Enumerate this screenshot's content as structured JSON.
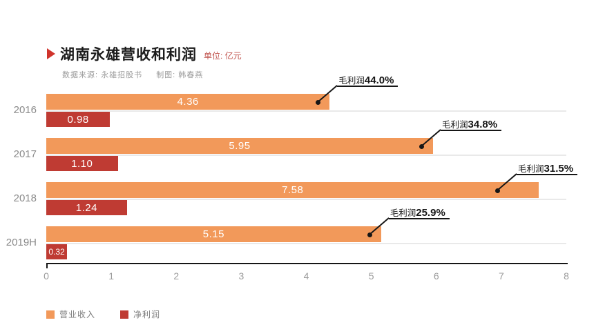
{
  "header": {
    "title": "湖南永雄营收和利润",
    "unit_label": "单位: 亿元",
    "source_note": "数据来源: 永雄招股书",
    "author_note": "制图: 韩春燕"
  },
  "chart_data": {
    "type": "bar",
    "orientation": "horizontal",
    "title": "湖南永雄营收和利润",
    "unit": "亿元",
    "categories": [
      "2016",
      "2017",
      "2018",
      "2019H"
    ],
    "series": [
      {
        "name": "营业收入",
        "color": "#F2995A",
        "values": [
          4.36,
          5.95,
          7.58,
          5.15
        ],
        "labels": [
          "4.36",
          "5.95",
          "7.58",
          "5.15"
        ]
      },
      {
        "name": "净利润",
        "color": "#BF3B33",
        "values": [
          0.98,
          1.1,
          1.24,
          0.32
        ],
        "labels": [
          "0.98",
          "1.10",
          "1.24",
          "0.32"
        ]
      }
    ],
    "annotations": [
      {
        "prefix": "毛利润",
        "value": "44.0%"
      },
      {
        "prefix": "毛利润",
        "value": "34.8%"
      },
      {
        "prefix": "毛利润",
        "value": "31.5%"
      },
      {
        "prefix": "毛利润",
        "value": "25.9%"
      }
    ],
    "xlim": [
      0,
      8
    ],
    "x_ticks": [
      "0",
      "1",
      "2",
      "3",
      "4",
      "5",
      "6",
      "7",
      "8"
    ],
    "grid": "off",
    "legend_position": "bottom"
  }
}
